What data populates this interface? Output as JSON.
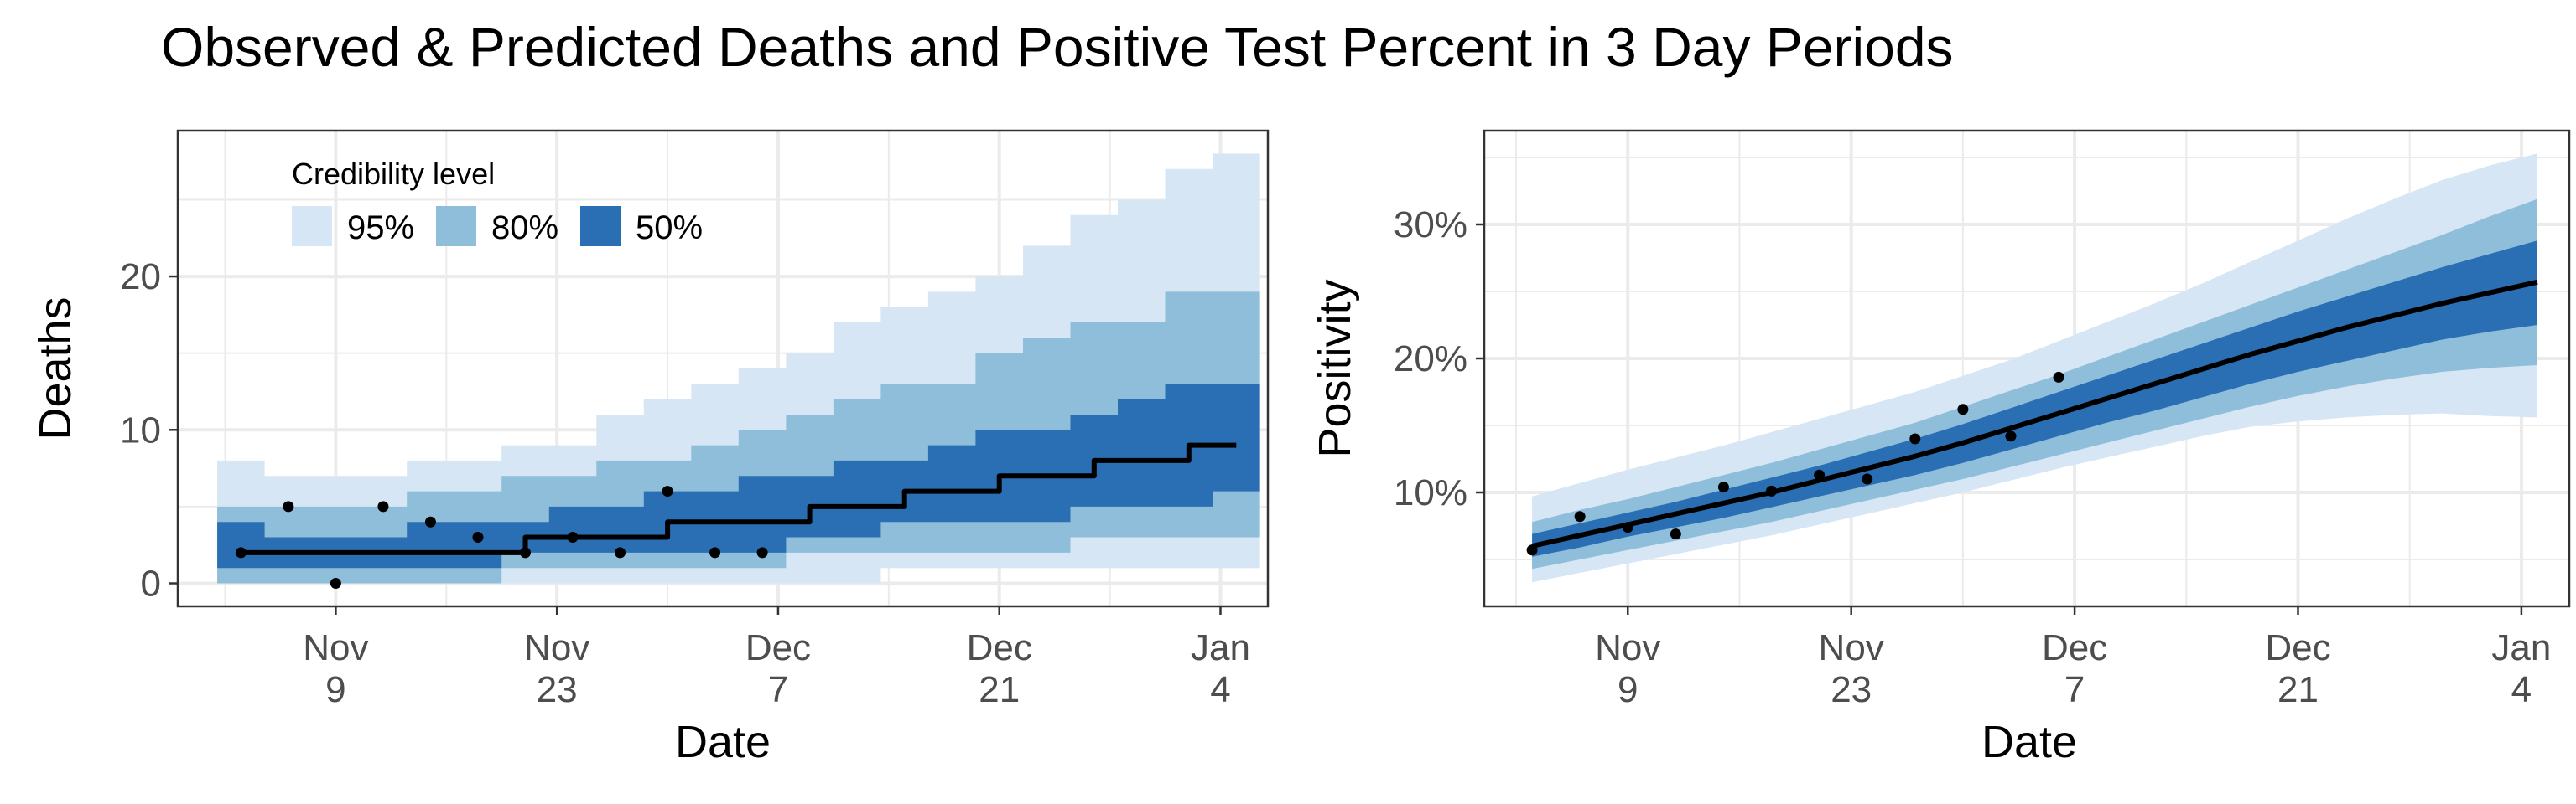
{
  "title": "Observed & Predicted Deaths and Positive Test Percent in 3 Day Periods",
  "colors": {
    "band95": "#d6e6f4",
    "band80": "#8fbedb",
    "band50": "#2a6fb3",
    "median": "#000000",
    "points": "#000000",
    "grid": "#ebebeb"
  },
  "legend": {
    "title": "Credibility level",
    "items": [
      "95%",
      "80%",
      "50%"
    ],
    "placement": "top-left"
  },
  "chart_data": [
    {
      "type": "area",
      "panel": "left",
      "xlabel": "Date",
      "ylabel": "Deaths",
      "x_ticks": [
        {
          "date": "2020-11-09",
          "label": [
            "Nov",
            "9"
          ]
        },
        {
          "date": "2020-11-23",
          "label": [
            "Nov",
            "23"
          ]
        },
        {
          "date": "2020-12-07",
          "label": [
            "Dec",
            "7"
          ]
        },
        {
          "date": "2020-12-21",
          "label": [
            "Dec",
            "21"
          ]
        },
        {
          "date": "2021-01-04",
          "label": [
            "Jan",
            "4"
          ]
        }
      ],
      "y_ticks": [
        0,
        10,
        20
      ],
      "y_tick_labels": [
        "0",
        "10",
        "20"
      ],
      "xlim": [
        "2020-10-30",
        "2021-01-07"
      ],
      "ylim": [
        -1.5,
        29.5
      ],
      "step": true,
      "dates": [
        "2020-11-03",
        "2020-11-06",
        "2020-11-09",
        "2020-11-12",
        "2020-11-15",
        "2020-11-18",
        "2020-11-21",
        "2020-11-24",
        "2020-11-27",
        "2020-11-30",
        "2020-12-03",
        "2020-12-06",
        "2020-12-09",
        "2020-12-12",
        "2020-12-15",
        "2020-12-18",
        "2020-12-21",
        "2020-12-24",
        "2020-12-27",
        "2020-12-30",
        "2021-01-02",
        "2021-01-05"
      ],
      "median": [
        2,
        2,
        2,
        2,
        2,
        2,
        3,
        3,
        3,
        4,
        4,
        4,
        5,
        5,
        6,
        6,
        7,
        7,
        8,
        8,
        9,
        9
      ],
      "lo50": [
        1,
        1,
        1,
        1,
        1,
        1,
        2,
        2,
        2,
        2,
        2,
        2,
        3,
        3,
        4,
        4,
        4,
        4,
        5,
        5,
        5,
        6
      ],
      "hi50": [
        4,
        3,
        3,
        3,
        4,
        4,
        4,
        5,
        5,
        6,
        6,
        7,
        7,
        8,
        8,
        9,
        10,
        10,
        11,
        12,
        13,
        13
      ],
      "lo80": [
        0,
        0,
        0,
        0,
        0,
        0,
        1,
        1,
        1,
        1,
        1,
        1,
        2,
        2,
        2,
        2,
        2,
        2,
        3,
        3,
        3,
        3
      ],
      "hi80": [
        5,
        5,
        5,
        5,
        6,
        6,
        7,
        7,
        8,
        8,
        9,
        10,
        11,
        12,
        13,
        13,
        15,
        16,
        17,
        17,
        19,
        19
      ],
      "lo95": [
        0,
        0,
        0,
        0,
        0,
        0,
        0,
        0,
        0,
        0,
        0,
        0,
        0,
        0,
        1,
        1,
        1,
        1,
        1,
        1,
        1,
        1
      ],
      "hi95": [
        8,
        7,
        7,
        7,
        8,
        8,
        9,
        9,
        11,
        12,
        13,
        14,
        15,
        17,
        18,
        19,
        20,
        22,
        24,
        25,
        27,
        28
      ],
      "observed": [
        {
          "date": "2020-11-03",
          "value": 2
        },
        {
          "date": "2020-11-06",
          "value": 5
        },
        {
          "date": "2020-11-09",
          "value": 0
        },
        {
          "date": "2020-11-12",
          "value": 5
        },
        {
          "date": "2020-11-15",
          "value": 4
        },
        {
          "date": "2020-11-18",
          "value": 3
        },
        {
          "date": "2020-11-21",
          "value": 2
        },
        {
          "date": "2020-11-24",
          "value": 3
        },
        {
          "date": "2020-11-27",
          "value": 2
        },
        {
          "date": "2020-11-30",
          "value": 6
        },
        {
          "date": "2020-12-03",
          "value": 2
        },
        {
          "date": "2020-12-06",
          "value": 2
        }
      ]
    },
    {
      "type": "area",
      "panel": "right",
      "xlabel": "Date",
      "ylabel": "Positivity",
      "x_ticks": [
        {
          "date": "2020-11-09",
          "label": [
            "Nov",
            "9"
          ]
        },
        {
          "date": "2020-11-23",
          "label": [
            "Nov",
            "23"
          ]
        },
        {
          "date": "2020-12-07",
          "label": [
            "Dec",
            "7"
          ]
        },
        {
          "date": "2020-12-21",
          "label": [
            "Dec",
            "21"
          ]
        },
        {
          "date": "2021-01-04",
          "label": [
            "Jan",
            "4"
          ]
        }
      ],
      "y_ticks": [
        10,
        20,
        30
      ],
      "y_tick_labels": [
        "10%",
        "20%",
        "30%"
      ],
      "xlim": [
        "2020-10-31",
        "2021-01-07"
      ],
      "ylim": [
        1.5,
        37
      ],
      "step": false,
      "dates": [
        "2020-11-03",
        "2020-11-06",
        "2020-11-09",
        "2020-11-12",
        "2020-11-15",
        "2020-11-18",
        "2020-11-21",
        "2020-11-24",
        "2020-11-27",
        "2020-11-30",
        "2020-12-03",
        "2020-12-06",
        "2020-12-09",
        "2020-12-12",
        "2020-12-15",
        "2020-12-18",
        "2020-12-21",
        "2020-12-24",
        "2020-12-27",
        "2020-12-30",
        "2021-01-02",
        "2021-01-05"
      ],
      "median": [
        6.0,
        6.8,
        7.6,
        8.4,
        9.2,
        10.0,
        10.9,
        11.8,
        12.7,
        13.7,
        14.8,
        15.9,
        17.0,
        18.1,
        19.2,
        20.3,
        21.3,
        22.3,
        23.2,
        24.1,
        24.9,
        25.7
      ],
      "lo50": [
        5.2,
        5.9,
        6.7,
        7.4,
        8.1,
        8.9,
        9.7,
        10.5,
        11.3,
        12.2,
        13.2,
        14.2,
        15.2,
        16.1,
        17.1,
        18.1,
        19.0,
        19.8,
        20.6,
        21.4,
        22.0,
        22.5
      ],
      "hi50": [
        6.9,
        7.7,
        8.5,
        9.3,
        10.2,
        11.1,
        12.0,
        13.0,
        14.0,
        15.1,
        16.3,
        17.5,
        18.7,
        19.9,
        21.1,
        22.3,
        23.5,
        24.6,
        25.7,
        26.8,
        27.8,
        28.8
      ],
      "lo80": [
        4.3,
        5.0,
        5.7,
        6.4,
        7.1,
        7.8,
        8.6,
        9.4,
        10.2,
        11.0,
        11.9,
        12.8,
        13.7,
        14.6,
        15.5,
        16.4,
        17.2,
        17.9,
        18.5,
        19.0,
        19.3,
        19.5
      ],
      "hi80": [
        7.8,
        8.7,
        9.5,
        10.4,
        11.3,
        12.2,
        13.2,
        14.2,
        15.2,
        16.4,
        17.6,
        18.8,
        20.1,
        21.4,
        22.7,
        24.0,
        25.3,
        26.6,
        27.9,
        29.2,
        30.6,
        31.9
      ],
      "lo95": [
        3.3,
        4.0,
        4.7,
        5.4,
        6.1,
        6.8,
        7.6,
        8.4,
        9.2,
        10.0,
        10.9,
        11.8,
        12.6,
        13.4,
        14.2,
        14.9,
        15.3,
        15.6,
        15.8,
        15.9,
        15.7,
        15.6
      ],
      "hi95": [
        9.7,
        10.7,
        11.7,
        12.6,
        13.5,
        14.5,
        15.5,
        16.5,
        17.5,
        18.7,
        19.9,
        21.3,
        22.7,
        24.1,
        25.6,
        27.2,
        28.8,
        30.4,
        31.9,
        33.3,
        34.4,
        35.3
      ],
      "observed": [
        {
          "date": "2020-11-03",
          "value": 5.7
        },
        {
          "date": "2020-11-06",
          "value": 8.2
        },
        {
          "date": "2020-11-09",
          "value": 7.4
        },
        {
          "date": "2020-11-12",
          "value": 6.9
        },
        {
          "date": "2020-11-15",
          "value": 10.4
        },
        {
          "date": "2020-11-18",
          "value": 10.1
        },
        {
          "date": "2020-11-21",
          "value": 11.3
        },
        {
          "date": "2020-11-24",
          "value": 11.0
        },
        {
          "date": "2020-11-27",
          "value": 14.0
        },
        {
          "date": "2020-11-30",
          "value": 16.2
        },
        {
          "date": "2020-12-03",
          "value": 14.2
        },
        {
          "date": "2020-12-06",
          "value": 18.6
        }
      ]
    }
  ]
}
